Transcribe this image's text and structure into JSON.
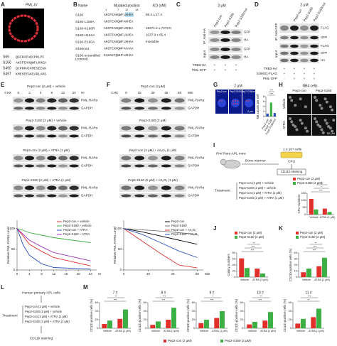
{
  "panel_letters": [
    "A",
    "B",
    "C",
    "D",
    "E",
    "F",
    "G",
    "H",
    "I",
    "J",
    "K",
    "L",
    "M"
  ],
  "panel_a": {
    "title": "PML-IV",
    "sequences": [
      {
        "site": "S65",
        "seq": "QGCRAEAKCPKLPC"
      },
      {
        "site": "S160",
        "seq": "AKCFEAHQWFLKHEA"
      },
      {
        "site": "S490",
        "seq": "QCPRKVIKMESEEGK"
      },
      {
        "site": "S497",
        "seq": "KMESEEGKEARLARS"
      }
    ]
  },
  "panel_b": {
    "headers": [
      "Name",
      "Mutated position",
      "KD (nM)"
    ],
    "positions": [
      "1",
      "7",
      "11",
      "15"
    ],
    "rows": [
      {
        "name": "S160",
        "sequence": "AKCFEAHQWFLKHEA",
        "kd": "68.4 ± 27.4"
      },
      {
        "name": "S160-L159A",
        "sequence": "AKCFEAHQWFAKHEA"
      },
      {
        "name": "S160-K160R",
        "sequence": "AKCFEAHQWFLRHEA",
        "kd": "19371.0 ± 7272.0"
      },
      {
        "name": "S160-H161A",
        "sequence": "AKCFEAHQWFLKAEA",
        "kd": "1037.9 ± 65.4"
      },
      {
        "name": "S160-E160A",
        "sequence": "AKCFEAHQWFLKHAA",
        "kd": "Insoluble"
      },
      {
        "name": "S160mut",
        "sequence": "AKCFEAHQWFAAAAA"
      },
      {
        "name": "S160-scrambled",
        "note": "(control)",
        "sequence": "EAHAEFQWHFLKHCA"
      }
    ]
  },
  "panel_c": {
    "dose": "2 μM",
    "lanes": [
      "Pep2-con",
      "Pep2-S160",
      "Pep2-S160mut"
    ],
    "blots": [
      "GFP",
      "HA",
      "GFP",
      "HA"
    ],
    "groups": [
      "IP: Anti-HA",
      "Input"
    ],
    "conditions": [
      {
        "name": "TRB3-HA",
        "marks": [
          "+",
          "+",
          "+"
        ]
      },
      {
        "name": "PML-GFP",
        "marks": [
          "+",
          "+",
          "+"
        ]
      }
    ]
  },
  "panel_d": {
    "dose": "2 μM",
    "lanes": [
      "Pep2-con",
      "Pep2-S160",
      "Pep2-S160mut"
    ],
    "blots": [
      "FLAG",
      "GFP",
      "FLAG",
      "GFP",
      "HA"
    ],
    "groups": [
      "IP: Anti-GFP",
      "Input"
    ],
    "conditions": [
      {
        "name": "TRB3-HA",
        "marks": [
          "+",
          "+",
          "+",
          "+"
        ]
      },
      {
        "name": "SUMO1-FLAG",
        "marks": [
          "+",
          "+",
          "+",
          "+"
        ]
      },
      {
        "name": "PML-GFP",
        "marks": [
          "-",
          "+",
          "+",
          "+"
        ]
      }
    ]
  },
  "panel_e": {
    "chx": "CHX",
    "times": [
      "0",
      "2",
      "4",
      "8",
      "12",
      "24"
    ],
    "unit": "Hr",
    "rows": [
      "PML-RARα",
      "GAPDH"
    ],
    "blots": [
      "Pep2-con (2 μM) + vehicle",
      "Pep2-S160 (2 μM) + vehicle",
      "Pep2-con (2 μM) + ATRA (1 μM)",
      "Pep2-S160 (2 μM) + ATRA (1 μM)"
    ]
  },
  "panel_f": {
    "chx": "CHX",
    "times": [
      "0",
      "15",
      "30",
      "45",
      "60"
    ],
    "unit": "Min",
    "rows": [
      "PML-RARα",
      "GAPDH"
    ],
    "blots": [
      "Pep2-con (2 μM)",
      "Pep2-S160 (2 μM)",
      "Pep2-con (2 μM) + As₂O₃ (1 μM)",
      "Pep2-S160 (2 μM) + As₂O₃ (1 μM)"
    ]
  },
  "panel_g": {
    "dose": "2 μM",
    "images": [
      "Pep2-con",
      "Pep2-S160",
      "Pep2-S160mut"
    ],
    "scale": "2 μm"
  },
  "panel_h": {
    "title": "NB4 cells",
    "columns": [
      "Pep2-con",
      "Pep2-S160"
    ],
    "rows": [
      "Vehicle",
      "ATRA"
    ],
    "scale": "50 μm"
  },
  "panel_i": {
    "mouse": "Pml-Rara APL mice",
    "source": "Bone marrow",
    "cells": "1 x 10⁴ cells",
    "assay": "CFU",
    "staining": "CD11b staining",
    "treatment": "Treatment",
    "arms": [
      "Pep2-con (2 μM) + vehicle",
      "Pep2-S160 (2 μM) + vehicle",
      "Pep2-con (2 μM) + ATRA (1 μM)",
      "Pep2-S160 (2 μM) + ATRA (1 μM)"
    ]
  },
  "panel_l": {
    "source": "Human primary APL cells",
    "treatment": "Treatment",
    "staining": "CD11b staining",
    "arms": [
      "Pep2-con (2 μM) + vehicle",
      "Pep2-S160 (2 μM) + vehicle",
      "Pep2-con (2 μM) + ATRA (1 μM)",
      "Pep2-S160 (2 μM) + ATRA (1 μM)"
    ]
  },
  "chart_data": [
    {
      "type": "line",
      "ylabel": "Relative PML-RARα Level",
      "x": [
        0,
        2,
        4,
        8,
        12,
        24
      ],
      "xlim": [
        0,
        26
      ],
      "xticks": [
        0,
        4,
        8,
        12,
        16,
        20,
        24
      ],
      "x_unit": "Hr",
      "ylim": [
        0,
        120
      ],
      "yticks": [
        0,
        50,
        100
      ],
      "series": [
        {
          "name": "Pep2-con + vehicle",
          "color": "#e0302b",
          "values": [
            100,
            82,
            62,
            45,
            30,
            10
          ]
        },
        {
          "name": "Pep2-S160 + vehicle",
          "color": "#3cb043",
          "values": [
            100,
            96,
            90,
            84,
            78,
            66
          ]
        },
        {
          "name": "Pep2-con + ATRA",
          "color": "#2a52be",
          "values": [
            100,
            60,
            36,
            15,
            6,
            2
          ]
        },
        {
          "name": "Pep2-S160 + ATRA",
          "color": "#9b30c0",
          "values": [
            100,
            86,
            72,
            56,
            42,
            22
          ]
        }
      ]
    },
    {
      "type": "line",
      "ylabel": "Relative PML-RARα Level",
      "x": [
        0,
        15,
        30,
        45,
        60
      ],
      "xlim": [
        0,
        65
      ],
      "xticks": [
        0,
        20,
        40,
        60
      ],
      "x_unit": "Min",
      "ylim": [
        0,
        120
      ],
      "yticks": [
        0,
        50,
        100
      ],
      "series": [
        {
          "name": "Pep2-con",
          "color": "#000000",
          "values": [
            100,
            92,
            82,
            72,
            62
          ]
        },
        {
          "name": "Pep2-S160",
          "color": "#777777",
          "values": [
            100,
            97,
            94,
            90,
            86
          ]
        },
        {
          "name": "Pep2-con + As₂O₃",
          "color": "#e0302b",
          "values": [
            100,
            70,
            40,
            12,
            5
          ]
        },
        {
          "name": "Pep2-S160 + As₂O₃",
          "color": "#2a52be",
          "values": [
            100,
            86,
            66,
            46,
            30
          ]
        }
      ]
    },
    {
      "type": "bar",
      "ylabel": "NB counts per cell",
      "categories": [
        "Pep2-con",
        "Pep2-S160",
        "Pep2-S160mut"
      ],
      "values": [
        1.2,
        5.6,
        1.4
      ],
      "colors": [
        "#2a52be",
        "#3cb043",
        "#2a52be"
      ],
      "ylim": [
        0,
        8
      ],
      "yticks": [
        0,
        2,
        4,
        6,
        8
      ],
      "annotations": [
        "***",
        "***"
      ]
    },
    {
      "type": "bar",
      "ylabel": "CFU numbers",
      "categories": [
        "Vehicle",
        "ATRA (1 μM)"
      ],
      "ylim": [
        0,
        150
      ],
      "yticks": [
        0,
        50,
        100,
        150
      ],
      "series": [
        {
          "name": "Pep2-con (2 μM)",
          "color": "#e0302b",
          "values": [
            110,
            42
          ]
        },
        {
          "name": "Pep2-S160 (2 μM)",
          "color": "#3cb043",
          "values": [
            36,
            18
          ]
        }
      ],
      "annotations": [
        "***",
        "*",
        "**"
      ]
    },
    {
      "type": "bar",
      "ylabel": "Colony numbers",
      "categories": [
        "Vehicle",
        "ATRA (1 μM)"
      ],
      "ylim": [
        0,
        80
      ],
      "yticks": [
        0,
        20,
        40,
        60,
        80
      ],
      "series": [
        {
          "name": "Pep2-con (2 μM)",
          "color": "#e0302b",
          "values": [
            62,
            28
          ]
        },
        {
          "name": "Pep2-S160 (2 μM)",
          "color": "#3cb043",
          "values": [
            30,
            12
          ]
        }
      ],
      "annotations": [
        "***",
        "***",
        "**"
      ]
    },
    {
      "type": "bar",
      "ylabel": "CD11b positive cells (%)",
      "categories": [
        "Vehicle",
        "ATRA (1 μM)"
      ],
      "ylim": [
        0,
        40
      ],
      "yticks": [
        0,
        10,
        20,
        30,
        40
      ],
      "series": [
        {
          "name": "Pep2-con (2 μM)",
          "color": "#e0302b",
          "values": [
            8,
            18
          ]
        },
        {
          "name": "Pep2-S160 (2 μM)",
          "color": "#3cb043",
          "values": [
            14,
            32
          ]
        }
      ],
      "annotations": [
        "***",
        "***",
        "**"
      ]
    },
    {
      "type": "bar",
      "ylabel": "CD11b positive cells (%)",
      "categories": [
        "Vehicle",
        "ATRA (1 μM)"
      ],
      "ylim": [
        0,
        60
      ],
      "yticks": [
        0,
        20,
        40,
        60
      ],
      "series": [
        {
          "name": "Pep2-con (2 μM)",
          "color": "#e0302b"
        },
        {
          "name": "Pep2-S160 (2 μM)",
          "color": "#3cb043"
        }
      ],
      "patients": [
        {
          "title": "7 #",
          "values": [
            [
              10,
              22
            ],
            [
              18,
              44
            ]
          ],
          "annotations": [
            "***",
            "**"
          ]
        },
        {
          "title": "8 #",
          "values": [
            [
              8,
              20
            ],
            [
              16,
              48
            ]
          ],
          "annotations": [
            "***",
            "***"
          ]
        },
        {
          "title": "9 #",
          "values": [
            [
              12,
              24
            ],
            [
              20,
              40
            ]
          ],
          "annotations": [
            "***",
            "*"
          ]
        },
        {
          "title": "10 #",
          "values": [
            [
              9,
              18
            ],
            [
              15,
              38
            ]
          ],
          "annotations": [
            "***",
            "**"
          ]
        },
        {
          "title": "11 #",
          "values": [
            [
              11,
              26
            ],
            [
              22,
              46
            ]
          ],
          "annotations": [
            "**",
            "***"
          ]
        }
      ]
    }
  ]
}
